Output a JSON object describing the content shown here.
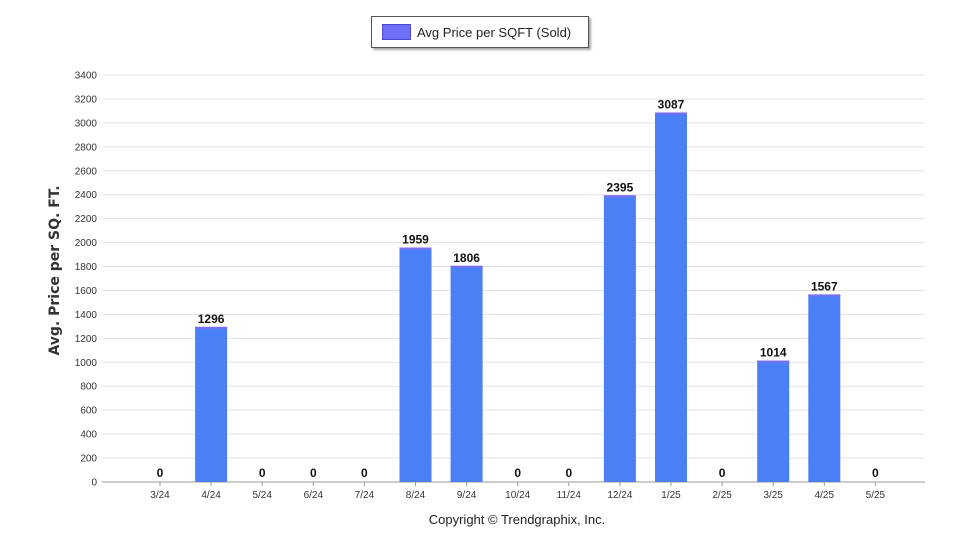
{
  "chart_data": {
    "type": "bar",
    "ylabel": "Avg. Price per SQ. FT.",
    "ylim": [
      0,
      3400
    ],
    "ytick_step": 200,
    "grid": true,
    "legend_position": "top-center",
    "categories": [
      "3/24",
      "4/24",
      "5/24",
      "6/24",
      "7/24",
      "8/24",
      "9/24",
      "10/24",
      "11/24",
      "12/24",
      "1/25",
      "2/25",
      "3/25",
      "4/25",
      "5/25"
    ],
    "series": [
      {
        "name": "Avg Price per SQFT (Sold)",
        "color": "#4a7ff5",
        "values": [
          0,
          1296,
          0,
          0,
          0,
          1959,
          1806,
          0,
          0,
          2395,
          3087,
          0,
          1014,
          1567,
          0
        ]
      }
    ]
  },
  "legend": {
    "label": "Avg Price per SQFT (Sold)"
  },
  "footer": {
    "copyright": "Copyright © Trendgraphix, Inc."
  }
}
